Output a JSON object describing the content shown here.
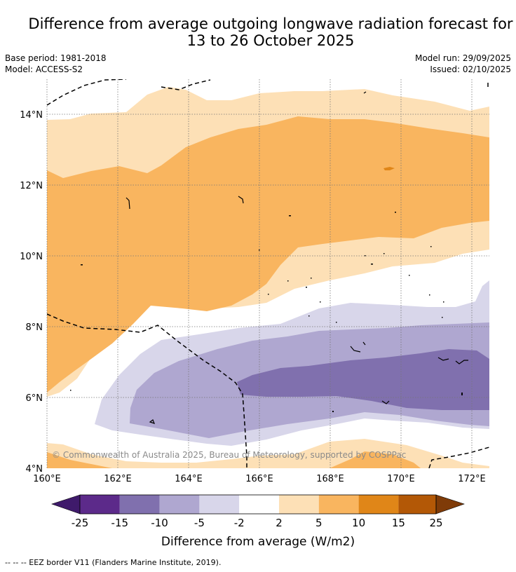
{
  "header": {
    "title_line1": "Difference from average outgoing longwave radiation forecast for",
    "title_line2": "13 to 26 October 2025",
    "base_period": "Base period: 1981-2018",
    "model": "Model: ACCESS-S2",
    "model_run": "Model run: 29/09/2025",
    "issued": "Issued: 02/10/2025"
  },
  "map": {
    "lat_labels": [
      "14°N",
      "12°N",
      "10°N",
      "8°N",
      "6°N",
      "4°N"
    ],
    "lon_labels": [
      "160°E",
      "162°E",
      "164°E",
      "166°E",
      "168°E",
      "170°E",
      "172°E"
    ],
    "copyright": "© Commonwealth of Australia 2025, Bureau of Meteorology, supported by COSPPac"
  },
  "colorbar": {
    "ticks": [
      "-25",
      "-15",
      "-10",
      "-5",
      "-2",
      "2",
      "5",
      "10",
      "15",
      "25"
    ],
    "label": "Difference from average (W/m2)",
    "colors": [
      "#3f1a6b",
      "#5c2a8a",
      "#8070ae",
      "#afa7d0",
      "#d8d6ea",
      "#ffffff",
      "#fde0b6",
      "#f9b55f",
      "#e08618",
      "#b35806",
      "#7f3b08"
    ]
  },
  "footnote": "--  --  -- EEZ border V11 (Flanders Marine Institute, 2019)."
}
